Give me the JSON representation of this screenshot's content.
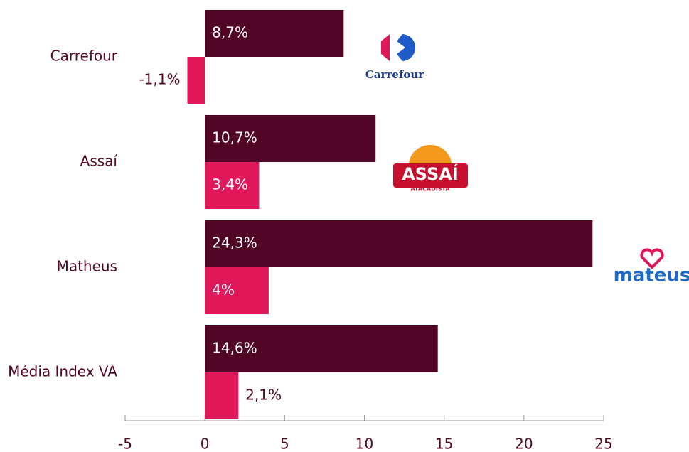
{
  "chart_data": {
    "type": "bar",
    "orientation": "horizontal",
    "categories": [
      "Carrefour",
      "Assaí",
      "Matheus",
      "Média Index VA"
    ],
    "series": [
      {
        "color": "#520626",
        "values": [
          8.7,
          10.7,
          24.3,
          14.6
        ],
        "value_labels": [
          "8,7%",
          "10,7%",
          "24,3%",
          "14,6%"
        ]
      },
      {
        "color": "#e0185a",
        "values": [
          -1.1,
          3.4,
          4,
          2.1
        ],
        "value_labels": [
          "-1,1%",
          "3,4%",
          "4%",
          "2,1%"
        ]
      }
    ],
    "xlim": [
      -5,
      25
    ],
    "xticks": [
      -5,
      0,
      5,
      10,
      15,
      20,
      25
    ],
    "logos": {
      "carrefour": "Carrefour",
      "assai": "ASSAÍ",
      "assai_sub": "ATACADISTA",
      "mateus": "mateus"
    }
  }
}
